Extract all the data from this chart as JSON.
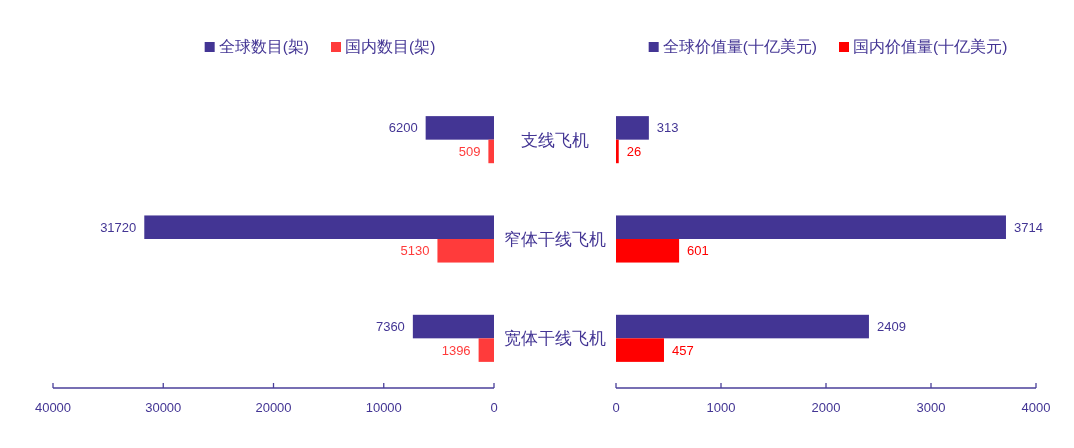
{
  "chart_data": [
    {
      "type": "bar",
      "orientation": "horizontal",
      "categories": [
        "支线飞机",
        "窄体干线飞机",
        "宽体干线飞机"
      ],
      "series": [
        {
          "name": "全球数目(架)",
          "color": "#433594",
          "values": [
            6200,
            31720,
            7360
          ]
        },
        {
          "name": "国内数目(架)",
          "color": "#ff3b3b",
          "values": [
            509,
            5130,
            1396
          ]
        }
      ],
      "xlim": [
        40000,
        0
      ],
      "xticks": [
        40000,
        30000,
        20000,
        10000,
        0
      ],
      "legend": "top",
      "data_labels": true
    },
    {
      "type": "bar",
      "orientation": "horizontal",
      "categories": [
        null,
        null,
        null
      ],
      "series": [
        {
          "name": "全球价值量(十亿美元)",
          "color": "#433594",
          "values": [
            313,
            3714,
            2409
          ]
        },
        {
          "name": "国内价值量(十亿美元)",
          "color": "#ff0000",
          "values": [
            26,
            601,
            457
          ]
        }
      ],
      "xlim": [
        0,
        4000
      ],
      "xticks": [
        0,
        1000,
        2000,
        3000,
        4000
      ],
      "legend": "top",
      "data_labels": true
    }
  ]
}
